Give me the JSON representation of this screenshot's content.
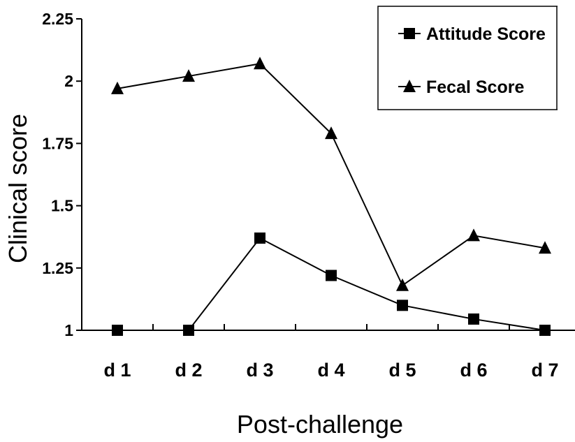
{
  "chart_data": {
    "type": "line",
    "title": "",
    "xlabel": "Post-challenge",
    "ylabel": "Clinical score",
    "categories": [
      "d 1",
      "d 2",
      "d 3",
      "d 4",
      "d 5",
      "d 6",
      "d 7"
    ],
    "ylim": [
      1,
      2.25
    ],
    "yticks": [
      "1",
      "1.25",
      "1.5",
      "1.75",
      "2",
      "2.25"
    ],
    "grid": false,
    "legend_placement": "top-right",
    "series": [
      {
        "name": "Attitude Score",
        "marker": "square",
        "color": "#000000",
        "values": [
          1.0,
          1.0,
          1.37,
          1.22,
          1.1,
          1.045,
          1.0
        ]
      },
      {
        "name": "Fecal Score",
        "marker": "triangle",
        "color": "#000000",
        "values": [
          1.97,
          2.02,
          2.07,
          1.79,
          1.18,
          1.38,
          1.33
        ]
      }
    ]
  }
}
